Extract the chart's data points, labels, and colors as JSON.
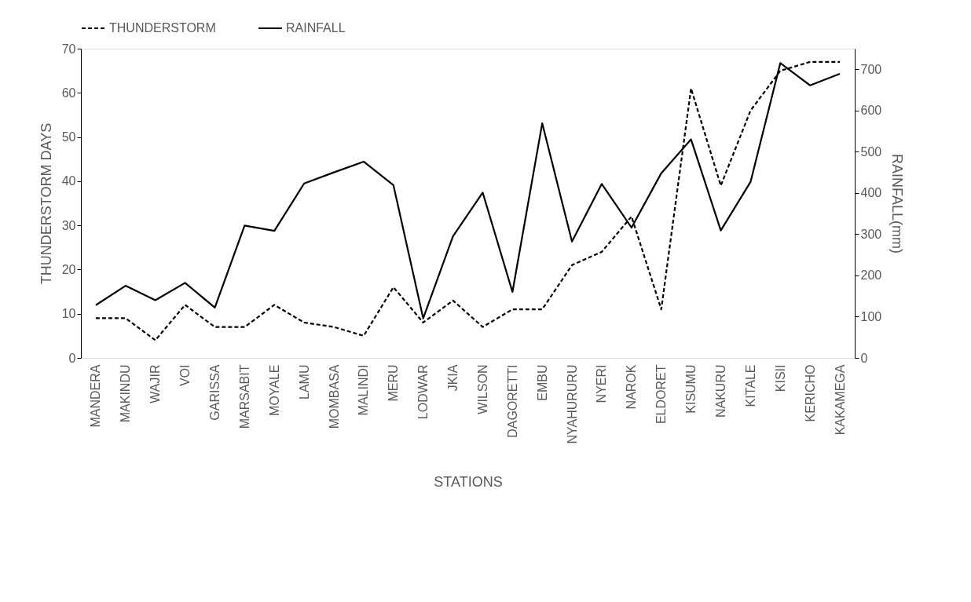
{
  "chart_data": {
    "type": "line",
    "xlabel": "STATIONS",
    "ylabel": "THUNDERSTORM DAYS",
    "y2label": "RAINFALL(mm)",
    "categories": [
      "MANDERA",
      "MAKINDU",
      "WAJIR",
      "VOI",
      "GARISSA",
      "MARSABIT",
      "MOYALE",
      "LAMU",
      "MOMBASA",
      "MALINDI",
      "MERU",
      "LODWAR",
      "JKIA",
      "WILSON",
      "DAGORETTI",
      "EMBU",
      "NYAHURURU",
      "NYERI",
      "NAROK",
      "ELDORET",
      "KISUMU",
      "NAKURU",
      "KITALE",
      "KISII",
      "KERICHO",
      "KAKAMEGA"
    ],
    "series": [
      {
        "name": "THUNDERSTORM",
        "color": "#000000",
        "line_style": "dashed",
        "values": [
          9,
          9,
          4,
          12,
          7,
          7,
          12,
          8,
          7,
          5,
          16,
          8,
          13,
          7,
          11,
          11,
          21,
          24,
          32,
          11,
          61,
          39,
          56,
          65,
          67,
          67
        ]
      },
      {
        "name": "RAINFALL",
        "color": "#000000",
        "line_style": "solid",
        "axis": "y2",
        "values": [
          128,
          175,
          140,
          182,
          122,
          321,
          308,
          423,
          450,
          476,
          419,
          96,
          295,
          401,
          160,
          569,
          282,
          422,
          316,
          448,
          530,
          309,
          427,
          715,
          661,
          689
        ]
      }
    ],
    "ylim": [
      0,
      70
    ],
    "yticks": [
      0,
      10,
      20,
      30,
      40,
      50,
      60,
      70
    ],
    "y2lim": [
      0,
      750
    ],
    "y2ticks": [
      0,
      100,
      200,
      300,
      400,
      500,
      600,
      700
    ],
    "grid": false,
    "legend": "top",
    "marker": "none"
  }
}
